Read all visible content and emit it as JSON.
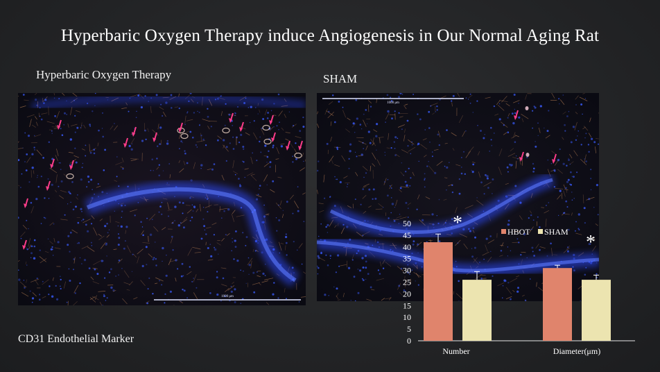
{
  "slide": {
    "title": "Hyperbaric Oxygen Therapy induce Angiogenesis in Our Normal Aging Rat",
    "left_label": "Hyperbaric Oxygen Therapy",
    "right_label": "SHAM",
    "caption": "CD31 Endothelial Marker",
    "scale_left": "1000 μm",
    "scale_right": "1000 μm"
  },
  "colors": {
    "hbot": "#e0846c",
    "sham": "#ece4b0",
    "nuclei": "#3a5cff",
    "arrow": "#ff3d8a"
  },
  "chart_data": {
    "type": "bar",
    "categories": [
      "Number",
      "Diameter(μm)"
    ],
    "series": [
      {
        "name": "HBOT",
        "values": [
          42,
          31
        ],
        "errors": [
          3.5,
          1.2
        ]
      },
      {
        "name": "SHAM",
        "values": [
          26,
          26
        ],
        "errors": [
          3.5,
          2.0
        ]
      }
    ],
    "yticks": [
      0,
      5,
      10,
      15,
      20,
      25,
      30,
      35,
      40,
      45,
      50
    ],
    "ylim": [
      0,
      50
    ],
    "significance": [
      "*",
      "*"
    ]
  }
}
